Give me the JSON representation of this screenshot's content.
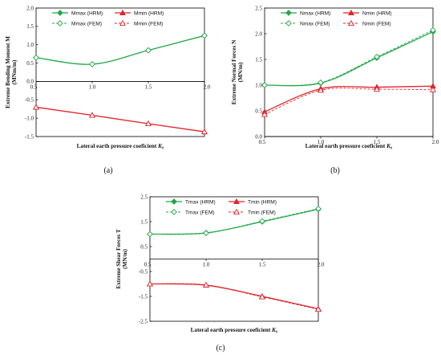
{
  "colors": {
    "green": "#22a84a",
    "red": "#e0242b",
    "axis": "#000000"
  },
  "chart_data": [
    {
      "type": "line",
      "panel_label": "(a)",
      "xlabel_main": "Lateral earth pressure coeficient ",
      "xlabel_italic": "K₀",
      "ylabel_line1": "Extreme Bending Moment M",
      "ylabel_line2": "(MNm/m)",
      "xlim": [
        0.5,
        2.0
      ],
      "ylim": [
        -1.5,
        2.0
      ],
      "xticks": [
        "0.5",
        "1.0",
        "1.5",
        "2.0"
      ],
      "yticks": [
        "-1.5",
        "-1.0",
        "-0.5",
        "0.0",
        "0.5",
        "1.0",
        "1.5",
        "2.0"
      ],
      "xaxis_at": 0,
      "series": [
        {
          "name": "Mmax (HRM)",
          "color": "green",
          "style": "solid",
          "marker": "diamond",
          "x": [
            0.5,
            1.0,
            1.5,
            2.0
          ],
          "y": [
            0.65,
            0.47,
            0.85,
            1.25
          ],
          "curve": true
        },
        {
          "name": "Mmin (HRM)",
          "color": "red",
          "style": "solid",
          "marker": "triangle",
          "x": [
            0.5,
            1.0,
            1.5,
            2.0
          ],
          "y": [
            -0.7,
            -0.92,
            -1.15,
            -1.37
          ],
          "curve": false
        },
        {
          "name": "Mmax (FEM)",
          "color": "green",
          "style": "dashed",
          "marker": "diamond-open",
          "x": [
            0.5,
            1.0,
            1.5,
            2.0
          ],
          "y": [
            0.65,
            0.47,
            0.85,
            1.25
          ],
          "curve": true
        },
        {
          "name": "Mmin (FEM)",
          "color": "red",
          "style": "dashed",
          "marker": "triangle-open",
          "x": [
            0.5,
            1.0,
            1.5,
            2.0
          ],
          "y": [
            -0.7,
            -0.92,
            -1.15,
            -1.37
          ],
          "curve": false
        }
      ]
    },
    {
      "type": "line",
      "panel_label": "(b)",
      "xlabel_main": "Lateral earth pressure coeficient ",
      "xlabel_italic": "K₀",
      "ylabel_line1": "Extreme Normal Forces N",
      "ylabel_line2": "(MN/m)",
      "xlim": [
        0.5,
        2.0
      ],
      "ylim": [
        0.0,
        2.5
      ],
      "xticks": [
        "0.5",
        "1.0",
        "1.5",
        "2.0"
      ],
      "yticks": [
        "0.0",
        "0.5",
        "1.0",
        "1.5",
        "2.0",
        "2.5"
      ],
      "xaxis_at": 0,
      "series": [
        {
          "name": "Nmax (HRM)",
          "color": "green",
          "style": "solid",
          "marker": "diamond",
          "x": [
            0.5,
            1.0,
            1.5,
            2.0
          ],
          "y": [
            1.0,
            1.04,
            1.53,
            2.04
          ],
          "curve": true
        },
        {
          "name": "Nmin (HRM)",
          "color": "red",
          "style": "solid",
          "marker": "triangle",
          "x": [
            0.5,
            1.0,
            1.5,
            2.0
          ],
          "y": [
            0.48,
            0.93,
            0.96,
            0.98
          ],
          "curve": true
        },
        {
          "name": "Nmax (FEM)",
          "color": "green",
          "style": "dashed",
          "marker": "diamond-open",
          "x": [
            0.5,
            1.0,
            1.5,
            2.0
          ],
          "y": [
            1.0,
            1.05,
            1.55,
            2.07
          ],
          "curve": true
        },
        {
          "name": "Nmin (FEM)",
          "color": "red",
          "style": "dashed",
          "marker": "triangle-open",
          "x": [
            0.5,
            1.0,
            1.5,
            2.0
          ],
          "y": [
            0.43,
            0.9,
            0.92,
            0.91
          ],
          "curve": true
        }
      ]
    },
    {
      "type": "line",
      "panel_label": "(c)",
      "xlabel_main": "Lateral earth pressure coeficient ",
      "xlabel_italic": "K₀",
      "ylabel_line1": "Extreme Shear Forces T",
      "ylabel_line2": "(MN/m)",
      "xlim": [
        0.5,
        2.0
      ],
      "ylim": [
        -2.5,
        2.5
      ],
      "xticks": [
        "0.5",
        "1.0",
        "1.5",
        "2.0"
      ],
      "yticks": [
        "-2.5",
        "-1.5",
        "-0.5",
        "0.5",
        "1.5",
        "2.5"
      ],
      "xaxis_at": 0,
      "series": [
        {
          "name": "Tmax (HRM)",
          "color": "green",
          "style": "solid",
          "marker": "diamond",
          "x": [
            0.5,
            1.0,
            1.5,
            2.0
          ],
          "y": [
            1.0,
            1.05,
            1.5,
            2.0
          ],
          "curve": true
        },
        {
          "name": "Tmin (HRM)",
          "color": "red",
          "style": "solid",
          "marker": "triangle",
          "x": [
            0.5,
            1.0,
            1.5,
            2.0
          ],
          "y": [
            -1.0,
            -1.05,
            -1.5,
            -2.0
          ],
          "curve": true
        },
        {
          "name": "Tmax (FEM)",
          "color": "green",
          "style": "dashed",
          "marker": "diamond-open",
          "x": [
            0.5,
            1.0,
            1.5,
            2.0
          ],
          "y": [
            1.0,
            1.04,
            1.52,
            2.02
          ],
          "curve": true
        },
        {
          "name": "Tmin (FEM)",
          "color": "red",
          "style": "dashed",
          "marker": "triangle-open",
          "x": [
            0.5,
            1.0,
            1.5,
            2.0
          ],
          "y": [
            -1.0,
            -1.04,
            -1.52,
            -2.02
          ],
          "curve": true
        }
      ]
    }
  ]
}
